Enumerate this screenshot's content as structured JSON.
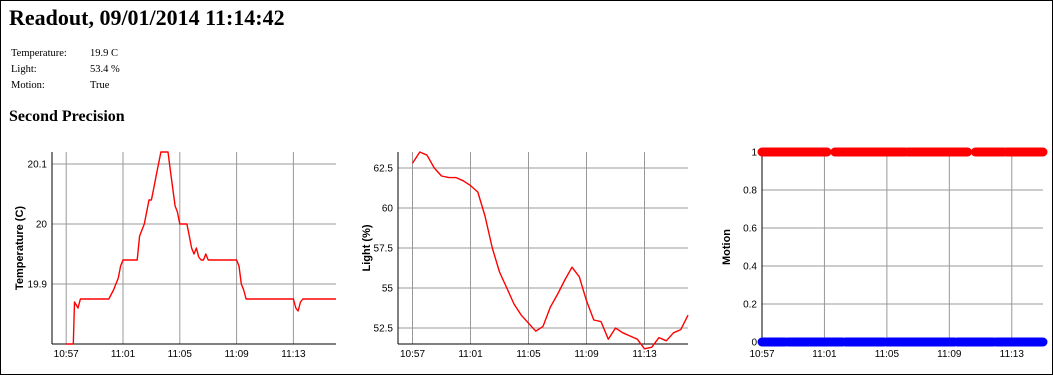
{
  "page": {
    "title": "Readout, 09/01/2014 11:14:42",
    "section_title": "Second Precision"
  },
  "readings": [
    {
      "label": "Temperature:",
      "value": "19.9 C"
    },
    {
      "label": "Light:",
      "value": "53.4 %"
    },
    {
      "label": "Motion:",
      "value": "True"
    }
  ],
  "colors": {
    "line": "#ff0000",
    "motion_on": "#ff0000",
    "motion_off": "#0000ff",
    "grid": "#999999"
  },
  "chart_data": [
    {
      "type": "line",
      "ylabel": "Temperature (C)",
      "xlim": [
        "10:56",
        "11:16"
      ],
      "ylim": [
        19.8,
        20.12
      ],
      "x_ticks": [
        "10:57",
        "11:01",
        "11:05",
        "11:09",
        "11:13"
      ],
      "y_ticks": [
        19.9,
        20,
        20.1
      ],
      "y_tick_labels": [
        "19.9",
        "20",
        "20.1"
      ],
      "grid": true,
      "series": [
        {
          "x": [
            "10:57",
            "10:57:30",
            "10:57:35",
            "10:57:50",
            "10:58",
            "10:58:10",
            "10:58:40",
            "10:59",
            "10:59:30",
            "11:00",
            "11:00:20",
            "11:00:40",
            "11:00:50",
            "11:01",
            "11:02",
            "11:02:10",
            "11:02:30",
            "11:02:50",
            "11:03",
            "11:03:10",
            "11:03:20",
            "11:03:30",
            "11:03:40",
            "11:04",
            "11:04:10",
            "11:04:20",
            "11:04:30",
            "11:04:40",
            "11:04:50",
            "11:05",
            "11:05:10",
            "11:05:30",
            "11:05:40",
            "11:05:50",
            "11:06",
            "11:06:10",
            "11:06:20",
            "11:06:30",
            "11:06:40",
            "11:06:50",
            "11:07",
            "11:07:30",
            "11:08",
            "11:08:30",
            "11:09",
            "11:09:10",
            "11:09:20",
            "11:09:30",
            "11:09:40",
            "11:10",
            "11:11",
            "11:12",
            "11:13",
            "11:13:10",
            "11:13:20",
            "11:13:30",
            "11:13:40",
            "11:14",
            "11:14:30",
            "11:15",
            "11:15:30",
            "11:16"
          ],
          "y": [
            19.8,
            19.8,
            19.87,
            19.86,
            19.875,
            19.875,
            19.875,
            19.875,
            19.875,
            19.875,
            19.89,
            19.91,
            19.93,
            19.94,
            19.94,
            19.98,
            20.0,
            20.04,
            20.04,
            20.06,
            20.08,
            20.1,
            20.12,
            20.12,
            20.12,
            20.09,
            20.06,
            20.03,
            20.02,
            20.0,
            20.0,
            20.0,
            19.98,
            19.96,
            19.95,
            19.96,
            19.945,
            19.94,
            19.94,
            19.95,
            19.94,
            19.94,
            19.94,
            19.94,
            19.94,
            19.93,
            19.9,
            19.89,
            19.875,
            19.875,
            19.875,
            19.875,
            19.875,
            19.86,
            19.855,
            19.87,
            19.875,
            19.875,
            19.875,
            19.875,
            19.875,
            19.875
          ]
        }
      ]
    },
    {
      "type": "line",
      "ylabel": "Light (%)",
      "xlim": [
        "10:56",
        "11:16"
      ],
      "ylim": [
        51.5,
        63.5
      ],
      "x_ticks": [
        "10:57",
        "11:01",
        "11:05",
        "11:09",
        "11:13"
      ],
      "y_ticks": [
        52.5,
        55,
        57.5,
        60,
        62.5
      ],
      "y_tick_labels": [
        "52.5",
        "55",
        "57.5",
        "60",
        "62.5"
      ],
      "grid": true,
      "series": [
        {
          "x": [
            "10:57",
            "10:57:30",
            "10:58",
            "10:58:30",
            "10:59",
            "10:59:30",
            "11:00",
            "11:00:30",
            "11:01",
            "11:01:30",
            "11:02",
            "11:02:30",
            "11:03",
            "11:03:30",
            "11:04",
            "11:04:30",
            "11:05",
            "11:05:30",
            "11:06",
            "11:06:30",
            "11:07",
            "11:07:30",
            "11:08",
            "11:08:30",
            "11:09",
            "11:09:30",
            "11:10",
            "11:10:30",
            "11:11",
            "11:11:30",
            "11:12",
            "11:12:30",
            "11:13",
            "11:13:30",
            "11:14",
            "11:14:30",
            "11:15",
            "11:15:30",
            "11:16"
          ],
          "y": [
            62.8,
            63.5,
            63.3,
            62.5,
            62.0,
            61.9,
            61.9,
            61.7,
            61.4,
            61.0,
            59.5,
            57.5,
            56.0,
            55.0,
            54.0,
            53.3,
            52.8,
            52.3,
            52.6,
            53.8,
            54.6,
            55.5,
            56.3,
            55.7,
            54.2,
            53.0,
            52.9,
            51.8,
            52.5,
            52.2,
            52.0,
            51.8,
            51.2,
            51.3,
            51.9,
            51.7,
            52.2,
            52.4,
            53.3
          ]
        }
      ]
    },
    {
      "type": "scatter",
      "ylabel": "Motion",
      "xlim": [
        "10:57",
        "11:15"
      ],
      "ylim": [
        0,
        1
      ],
      "x_ticks": [
        "10:57",
        "11:01",
        "11:05",
        "11:09",
        "11:13"
      ],
      "y_ticks": [
        0,
        0.2,
        0.4,
        0.6,
        0.8,
        1
      ],
      "y_tick_labels": [
        "0",
        "0.2",
        "0.4",
        "0.6",
        "0.8",
        "1"
      ],
      "grid": true,
      "series": [
        {
          "value": 1,
          "color": "#ff0000",
          "segments": [
            [
              "10:57",
              "11:01:10"
            ],
            [
              "11:01:40",
              "11:06:10"
            ],
            [
              "11:06:20",
              "11:10:10"
            ],
            [
              "11:10:40",
              "11:12:30"
            ],
            [
              "11:12:40",
              "11:15"
            ]
          ]
        },
        {
          "value": 0,
          "color": "#0000ff",
          "segments": [
            [
              "10:57",
              "10:58:30"
            ],
            [
              "10:58:40",
              "11:02:10"
            ],
            [
              "11:02:20",
              "11:04:50"
            ],
            [
              "11:05:00",
              "11:09:20"
            ],
            [
              "11:09:30",
              "11:11:50"
            ],
            [
              "11:12:00",
              "11:15"
            ]
          ]
        }
      ]
    }
  ]
}
